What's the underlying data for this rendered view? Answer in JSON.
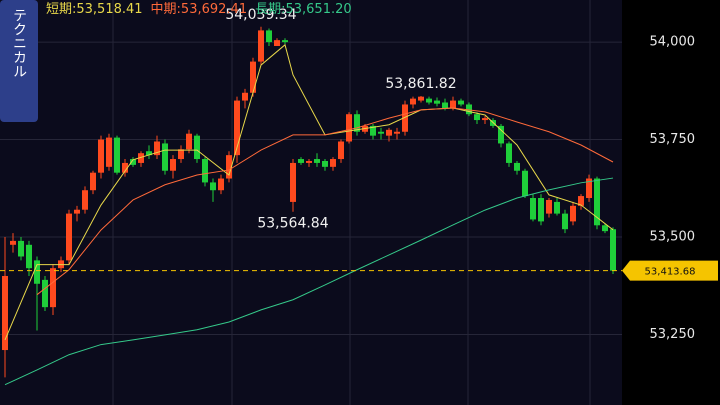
{
  "chart_data": {
    "type": "candlestick",
    "up_color": "#ff4a1e",
    "down_color": "#1fcf3a",
    "ylim": [
      53069,
      54108
    ],
    "yticks": [
      {
        "value": 53250,
        "label": "53,250"
      },
      {
        "value": 53500,
        "label": "53,500"
      },
      {
        "value": 53750,
        "label": "53,750"
      },
      {
        "value": 54000,
        "label": "54,000"
      }
    ],
    "grid": true,
    "side_tab": "テクニカル",
    "ohlc": [
      [
        53210,
        53500,
        53140,
        53400
      ],
      [
        53480,
        53510,
        53460,
        53490
      ],
      [
        53490,
        53500,
        53440,
        53450
      ],
      [
        53480,
        53490,
        53400,
        53420
      ],
      [
        53440,
        53450,
        53260,
        53380
      ],
      [
        53390,
        53400,
        53310,
        53320
      ],
      [
        53320,
        53430,
        53300,
        53420
      ],
      [
        53420,
        53450,
        53410,
        53440
      ],
      [
        53440,
        53570,
        53430,
        53560
      ],
      [
        53560,
        53580,
        53540,
        53570
      ],
      [
        53570,
        53630,
        53560,
        53620
      ],
      [
        53620,
        53670,
        53610,
        53665
      ],
      [
        53665,
        53760,
        53650,
        53750
      ],
      [
        53680,
        53765,
        53670,
        53755
      ],
      [
        53755,
        53760,
        53660,
        53665
      ],
      [
        53665,
        53700,
        53655,
        53690
      ],
      [
        53700,
        53705,
        53680,
        53685
      ],
      [
        53690,
        53720,
        53680,
        53715
      ],
      [
        53720,
        53735,
        53700,
        53710
      ],
      [
        53710,
        53760,
        53700,
        53745
      ],
      [
        53740,
        53750,
        53660,
        53670
      ],
      [
        53670,
        53710,
        53650,
        53700
      ],
      [
        53700,
        53735,
        53690,
        53725
      ],
      [
        53725,
        53775,
        53715,
        53765
      ],
      [
        53760,
        53765,
        53690,
        53700
      ],
      [
        53700,
        53705,
        53630,
        53640
      ],
      [
        53640,
        53650,
        53590,
        53620
      ],
      [
        53620,
        53660,
        53610,
        53650
      ],
      [
        53650,
        53720,
        53640,
        53710
      ],
      [
        53710,
        53860,
        53690,
        53850
      ],
      [
        53850,
        53880,
        53830,
        53870
      ],
      [
        53870,
        53960,
        53860,
        53950
      ],
      [
        53950,
        54039.34,
        53940,
        54030
      ],
      [
        54030,
        54035,
        53990,
        54000
      ],
      [
        53990,
        54010,
        53990,
        54005
      ],
      [
        54005,
        54010,
        53995,
        54000
      ],
      [
        53590,
        53700,
        53564.84,
        53690
      ],
      [
        53700,
        53705,
        53685,
        53690
      ],
      [
        53690,
        53700,
        53680,
        53695
      ],
      [
        53700,
        53715,
        53680,
        53690
      ],
      [
        53695,
        53700,
        53670,
        53680
      ],
      [
        53680,
        53705,
        53670,
        53700
      ],
      [
        53700,
        53750,
        53690,
        53745
      ],
      [
        53745,
        53820,
        53740,
        53815
      ],
      [
        53815,
        53825,
        53760,
        53770
      ],
      [
        53770,
        53790,
        53765,
        53785
      ],
      [
        53785,
        53790,
        53750,
        53760
      ],
      [
        53770,
        53780,
        53750,
        53765
      ],
      [
        53760,
        53780,
        53745,
        53775
      ],
      [
        53765,
        53780,
        53750,
        53770
      ],
      [
        53770,
        53850,
        53760,
        53840
      ],
      [
        53840,
        53860,
        53830,
        53855
      ],
      [
        53850,
        53861.82,
        53845,
        53860
      ],
      [
        53855,
        53860,
        53840,
        53845
      ],
      [
        53850,
        53858,
        53835,
        53842
      ],
      [
        53845,
        53855,
        53825,
        53830
      ],
      [
        53830,
        53860,
        53825,
        53850
      ],
      [
        53850,
        53855,
        53835,
        53840
      ],
      [
        53840,
        53845,
        53810,
        53815
      ],
      [
        53815,
        53820,
        53790,
        53800
      ],
      [
        53800,
        53810,
        53790,
        53805
      ],
      [
        53800,
        53805,
        53780,
        53785
      ],
      [
        53785,
        53790,
        53730,
        53740
      ],
      [
        53740,
        53745,
        53680,
        53690
      ],
      [
        53690,
        53695,
        53660,
        53670
      ],
      [
        53670,
        53675,
        53600,
        53605
      ],
      [
        53600,
        53610,
        53540,
        53545
      ],
      [
        53600,
        53610,
        53530,
        53540
      ],
      [
        53560,
        53600,
        53550,
        53595
      ],
      [
        53590,
        53600,
        53555,
        53560
      ],
      [
        53560,
        53570,
        53510,
        53520
      ],
      [
        53540,
        53590,
        53530,
        53580
      ],
      [
        53580,
        53610,
        53570,
        53605
      ],
      [
        53600,
        53660,
        53590,
        53650
      ],
      [
        53650,
        53655,
        53520,
        53530
      ],
      [
        53530,
        53535,
        53510,
        53515
      ],
      [
        53520,
        53525,
        53405,
        53413.68
      ]
    ],
    "series": [
      {
        "name": "短期:53,518.41",
        "color": "#e8d84a",
        "x": [
          0,
          4,
          8,
          12,
          16,
          20,
          24,
          28,
          32,
          35,
          36,
          40,
          44,
          48,
          52,
          56,
          60,
          64,
          68,
          72,
          76
        ],
        "values": [
          53236,
          53429,
          53429,
          53582,
          53698,
          53723,
          53723,
          53659,
          53941,
          53993,
          53916,
          53762,
          53775,
          53788,
          53826,
          53831,
          53813,
          53736,
          53608,
          53582,
          53518.41
        ]
      },
      {
        "name": "中期:53,692.41",
        "color": "#ff6a3a",
        "x": [
          4,
          8,
          12,
          16,
          20,
          24,
          28,
          32,
          36,
          40,
          44,
          48,
          52,
          56,
          60,
          64,
          68,
          72,
          76
        ],
        "values": [
          53352,
          53416,
          53518,
          53595,
          53634,
          53659,
          53672,
          53723,
          53762,
          53762,
          53780,
          53805,
          53826,
          53831,
          53821,
          53795,
          53770,
          53736,
          53692.41
        ]
      },
      {
        "name": "長期:53,651.20",
        "color": "#35c98a",
        "x": [
          0,
          4,
          8,
          12,
          16,
          20,
          24,
          28,
          32,
          36,
          40,
          44,
          48,
          52,
          56,
          60,
          64,
          68,
          72,
          76
        ],
        "values": [
          53121,
          53159,
          53198,
          53224,
          53236,
          53249,
          53262,
          53282,
          53313,
          53339,
          53377,
          53416,
          53454,
          53492,
          53531,
          53569,
          53600,
          53621,
          53639,
          53651.2
        ]
      }
    ],
    "annotations": [
      {
        "text": "54,039.34",
        "index": 32,
        "value": 54039.34,
        "position": "above"
      },
      {
        "text": "53,861.82",
        "index": 52,
        "value": 53861.82,
        "position": "above"
      },
      {
        "text": "53,564.84",
        "index": 36,
        "value": 53564.84,
        "position": "below"
      }
    ],
    "last_price": {
      "value": 53413.68,
      "label": "53,413.68",
      "color": "#f5c400"
    }
  }
}
